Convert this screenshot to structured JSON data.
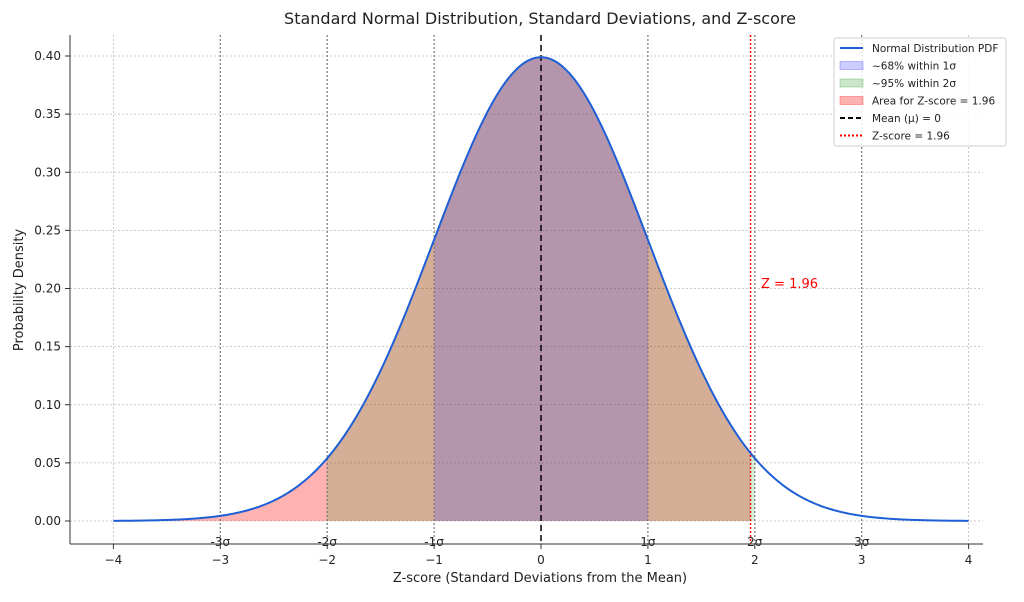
{
  "chart_data": {
    "type": "area",
    "title": "Standard Normal Distribution, Standard Deviations, and Z-score",
    "xlabel": "Z-score (Standard Deviations from the Mean)",
    "ylabel": "Probability Density",
    "xlim": [
      -4.4,
      4.4
    ],
    "ylim": [
      -0.02,
      0.42
    ],
    "xticks": [
      -4,
      -3,
      -2,
      -1,
      0,
      1,
      2,
      3,
      4
    ],
    "xtick_labels": [
      "−4",
      "−3",
      "−2",
      "−1",
      "0",
      "1",
      "2",
      "3",
      "4"
    ],
    "yticks": [
      0,
      0.05,
      0.1,
      0.15,
      0.2,
      0.25,
      0.3,
      0.35,
      0.4
    ],
    "ytick_labels": [
      "0.00",
      "0.05",
      "0.10",
      "0.15",
      "0.20",
      "0.25",
      "0.30",
      "0.35",
      "0.40"
    ],
    "grid": true,
    "legend_placement": "top-right",
    "curve": {
      "name": "Normal Distribution PDF",
      "x_range": [
        -4,
        4
      ],
      "mean": 0,
      "sd": 1,
      "color": "#1f5fd6"
    },
    "fills": [
      {
        "name": "Area for Z-score = 1.96",
        "from": -4,
        "to": 1.96,
        "color": "#ff0000",
        "alpha": 0.3
      },
      {
        "name": "~95% within 2σ",
        "from": -2,
        "to": 2,
        "color": "#2ca02c",
        "alpha": 0.2
      },
      {
        "name": "~68% within 1σ",
        "from": -1,
        "to": 1,
        "color": "#3333ff",
        "alpha": 0.2
      }
    ],
    "mean_line": {
      "name": "Mean (μ) = 0",
      "x": 0,
      "color": "#000000",
      "style": "dashed"
    },
    "z_line": {
      "name": "Z-score = 1.96",
      "x": 1.96,
      "color": "#ff0000",
      "style": "dotted"
    },
    "sigma_lines": [
      {
        "x": -3,
        "label": "-3σ"
      },
      {
        "x": -2,
        "label": "-2σ"
      },
      {
        "x": -1,
        "label": "-1σ"
      },
      {
        "x": 1,
        "label": "1σ"
      },
      {
        "x": 2,
        "label": "2σ"
      },
      {
        "x": 3,
        "label": "3σ"
      }
    ],
    "annotation": {
      "text": "Z = 1.96",
      "x": 2.0,
      "y": 0.2,
      "color": "#ff0000"
    },
    "legend": [
      "Normal Distribution PDF",
      "~68% within 1σ",
      "~95% within 2σ",
      "Area for Z-score = 1.96",
      "Mean (μ) = 0",
      "Z-score = 1.96"
    ]
  }
}
